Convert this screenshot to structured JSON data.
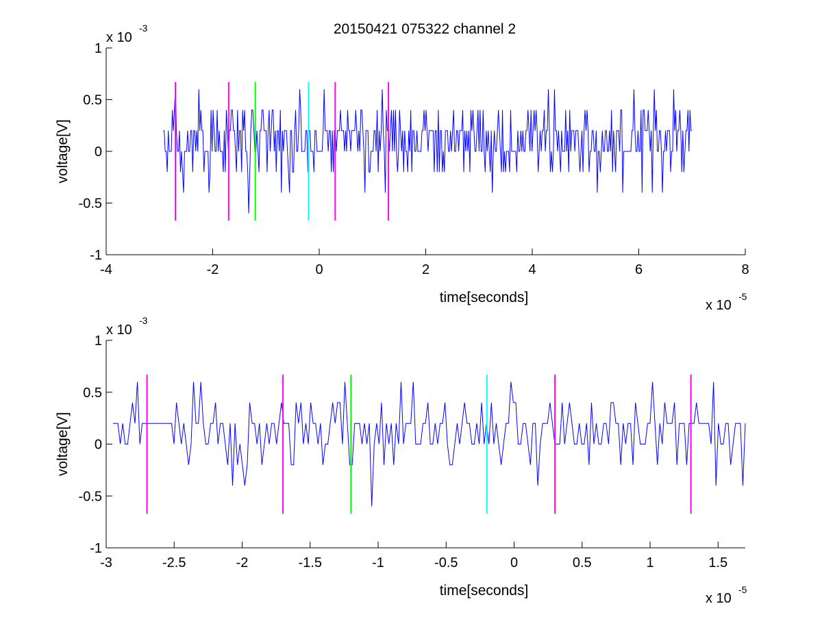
{
  "figure_title": "20150421 075322 channel 2",
  "chart_data": [
    {
      "type": "line",
      "title": "20150421 075322 channel 2",
      "xlabel": "time[seconds]",
      "ylabel": "voltage[V]",
      "x_multiplier": {
        "base": "x 10",
        "exponent": "-5"
      },
      "y_multiplier": {
        "base": "x 10",
        "exponent": "-3"
      },
      "xlim": [
        -4,
        8
      ],
      "ylim": [
        -1,
        1
      ],
      "xticks": [
        -4,
        -2,
        0,
        2,
        4,
        6,
        8
      ],
      "xtick_labels": [
        "-4",
        "-2",
        "0",
        "2",
        "4",
        "6",
        "8"
      ],
      "yticks": [
        -1,
        -0.5,
        0,
        0.5,
        1
      ],
      "ytick_labels": [
        "-1",
        "-0.5",
        "0",
        "0.5",
        "1"
      ],
      "grid": false,
      "series": [
        {
          "color": "#0000ff",
          "x_range": [
            -2.93,
            7.0
          ],
          "description_of_values": "quantized noise",
          "y_range": [
            -0.6,
            0.6
          ]
        }
      ],
      "markers": [
        {
          "x": -2.7,
          "color": "#ff00ff",
          "ymin": -0.67,
          "ymax": 0.67
        },
        {
          "x": -1.7,
          "color": "#ff00ff",
          "ymin": -0.67,
          "ymax": 0.67
        },
        {
          "x": -1.2,
          "color": "#00ff00",
          "ymin": -0.67,
          "ymax": 0.67
        },
        {
          "x": -0.2,
          "color": "#00ffff",
          "ymin": -0.67,
          "ymax": 0.67
        },
        {
          "x": 0.3,
          "color": "#ff00ff",
          "ymin": -0.67,
          "ymax": 0.67
        },
        {
          "x": 1.3,
          "color": "#ff00ff",
          "ymin": -0.67,
          "ymax": 0.67
        }
      ]
    },
    {
      "type": "line",
      "xlabel": "time[seconds]",
      "ylabel": "voltage[V]",
      "x_multiplier": {
        "base": "x 10",
        "exponent": "-5"
      },
      "y_multiplier": {
        "base": "x 10",
        "exponent": "-3"
      },
      "xlim": [
        -3.0,
        1.7
      ],
      "ylim": [
        -1,
        1
      ],
      "xticks": [
        -3,
        -2.5,
        -2,
        -1.5,
        -1,
        -0.5,
        0,
        0.5,
        1,
        1.5
      ],
      "xtick_labels": [
        "-3",
        "-2.5",
        "-2",
        "-1.5",
        "-1",
        "-0.5",
        "0",
        "0.5",
        "1",
        "1.5"
      ],
      "yticks": [
        -1,
        -0.5,
        0,
        0.5,
        1
      ],
      "ytick_labels": [
        "-1",
        "-0.5",
        "0",
        "0.5",
        "1"
      ],
      "grid": false,
      "series": [
        {
          "color": "#0000ff",
          "x_range": [
            -2.95,
            1.7
          ],
          "y_range": [
            -0.6,
            0.6
          ]
        }
      ],
      "markers": [
        {
          "x": -2.7,
          "color": "#ff00ff",
          "ymin": -0.67,
          "ymax": 0.67
        },
        {
          "x": -1.7,
          "color": "#ff00ff",
          "ymin": -0.67,
          "ymax": 0.67
        },
        {
          "x": -1.2,
          "color": "#00ff00",
          "ymin": -0.67,
          "ymax": 0.67
        },
        {
          "x": -0.2,
          "color": "#00ffff",
          "ymin": -0.67,
          "ymax": 0.67
        },
        {
          "x": 0.3,
          "color": "#ff00ff",
          "ymin": -0.67,
          "ymax": 0.67
        },
        {
          "x": 1.3,
          "color": "#ff00ff",
          "ymin": -0.67,
          "ymax": 0.67
        }
      ]
    }
  ]
}
